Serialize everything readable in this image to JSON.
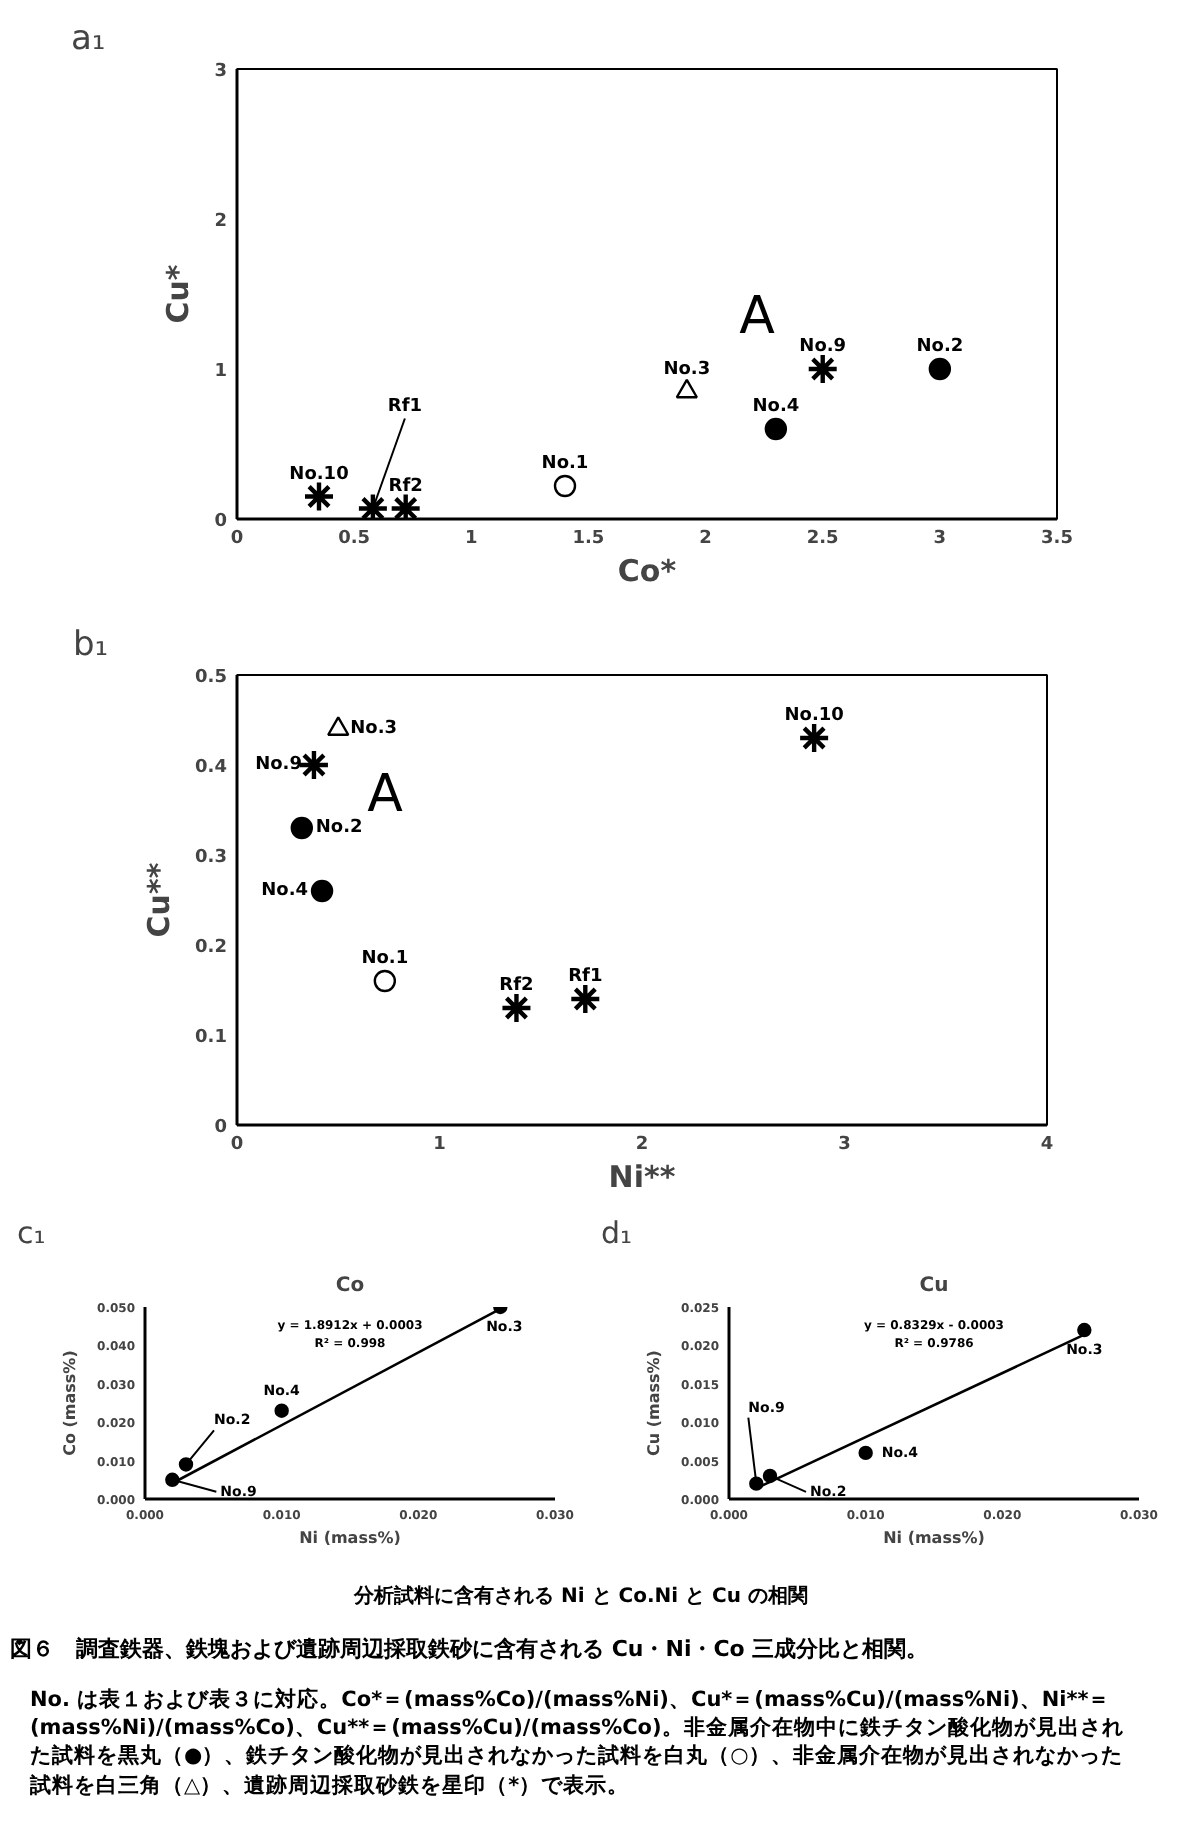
{
  "chart_data": [
    {
      "type": "scatter",
      "xlabel": "Co*",
      "ylabel": "Cu*",
      "xlim": [
        0,
        3.5
      ],
      "ylim": [
        0,
        3
      ],
      "xticks": [
        0,
        0.5,
        1,
        1.5,
        2,
        2.5,
        3,
        3.5
      ],
      "yticks": [
        0,
        1,
        2,
        3
      ],
      "series": [
        {
          "type": "scatter",
          "marker": "circle",
          "color": "#000000",
          "x": [
            2.3,
            3.0
          ],
          "values": [
            0.6,
            1.0
          ]
        },
        {
          "type": "scatter",
          "marker": "circle",
          "color": "#ffffff",
          "x": [
            1.4
          ],
          "values": [
            0.22
          ]
        },
        {
          "type": "scatter",
          "marker": "triangle",
          "color": "#ffffff",
          "x": [
            1.92
          ],
          "values": [
            0.85
          ]
        },
        {
          "type": "scatter",
          "marker": "cross",
          "color": "#000000",
          "x": [
            0.35,
            0.58,
            0.72,
            2.5
          ],
          "values": [
            0.15,
            0.07,
            0.07,
            1.0
          ]
        }
      ],
      "annotations": [
        "a₁",
        "A",
        {
          "text": "No.10",
          "x": 0.35,
          "y": 0.15
        },
        {
          "text": "Rf1",
          "x": 0.58,
          "y": 0.07
        },
        {
          "text": "Rf2",
          "x": 0.72,
          "y": 0.07
        },
        {
          "text": "No.1",
          "x": 1.4,
          "y": 0.22
        },
        {
          "text": "No.3",
          "x": 1.92,
          "y": 0.85
        },
        {
          "text": "No.4",
          "x": 2.3,
          "y": 0.6
        },
        {
          "text": "No.9",
          "x": 2.5,
          "y": 1.0
        },
        {
          "text": "No.2",
          "x": 3.0,
          "y": 1.0
        }
      ]
    },
    {
      "type": "scatter",
      "xlabel": "Ni**",
      "ylabel": "Cu**",
      "xlim": [
        0,
        4
      ],
      "ylim": [
        0,
        0.5
      ],
      "xticks": [
        0,
        1,
        2,
        3,
        4
      ],
      "yticks": [
        0,
        0.1,
        0.2,
        0.3,
        0.4,
        0.5
      ],
      "series": [
        {
          "type": "scatter",
          "marker": "circle",
          "color": "#000000",
          "x": [
            0.32,
            0.42
          ],
          "values": [
            0.33,
            0.26
          ]
        },
        {
          "type": "scatter",
          "marker": "circle",
          "color": "#ffffff",
          "x": [
            0.73
          ],
          "values": [
            0.16
          ]
        },
        {
          "type": "scatter",
          "marker": "triangle",
          "color": "#ffffff",
          "x": [
            0.5
          ],
          "values": [
            0.44
          ]
        },
        {
          "type": "scatter",
          "marker": "cross",
          "color": "#000000",
          "x": [
            0.38,
            1.38,
            1.72,
            2.85
          ],
          "values": [
            0.4,
            0.13,
            0.14,
            0.43
          ]
        }
      ],
      "annotations": [
        "b₁",
        "A",
        {
          "text": "No.3",
          "x": 0.5,
          "y": 0.44
        },
        {
          "text": "No.9",
          "x": 0.38,
          "y": 0.4
        },
        {
          "text": "No.2",
          "x": 0.32,
          "y": 0.33
        },
        {
          "text": "No.4",
          "x": 0.42,
          "y": 0.26
        },
        {
          "text": "No.1",
          "x": 0.73,
          "y": 0.16
        },
        {
          "text": "Rf2",
          "x": 1.38,
          "y": 0.13
        },
        {
          "text": "Rf1",
          "x": 1.72,
          "y": 0.14
        },
        {
          "text": "No.10",
          "x": 2.85,
          "y": 0.43
        }
      ]
    },
    {
      "type": "scatter",
      "title": "Co",
      "xlabel": "Ni (mass%)",
      "ylabel": "Co (mass%)",
      "xlim": [
        0,
        0.03
      ],
      "ylim": [
        0,
        0.05
      ],
      "xticks": [
        {
          "value": 0,
          "label": "0.000"
        },
        {
          "value": 0.01,
          "label": "0.010"
        },
        {
          "value": 0.02,
          "label": "0.020"
        },
        {
          "value": 0.03,
          "label": "0.030"
        }
      ],
      "yticks": [
        {
          "value": 0,
          "label": "0.000"
        },
        {
          "value": 0.01,
          "label": "0.010"
        },
        {
          "value": 0.02,
          "label": "0.020"
        },
        {
          "value": 0.03,
          "label": "0.030"
        },
        {
          "value": 0.04,
          "label": "0.040"
        },
        {
          "value": 0.05,
          "label": "0.050"
        }
      ],
      "series": [
        {
          "type": "line",
          "marker": "none",
          "color": "#000000",
          "x": [
            0.002,
            0.026
          ],
          "values": [
            0.0041,
            0.0495
          ]
        },
        {
          "type": "scatter",
          "marker": "circle",
          "color": "#000000",
          "x": [
            0.002,
            0.003,
            0.01,
            0.026
          ],
          "values": [
            0.005,
            0.009,
            0.023,
            0.05
          ]
        }
      ],
      "annotations": [
        "c₁",
        "y = 1.8912x + 0.0003",
        "R² = 0.998",
        {
          "text": "No.9",
          "x": 0.002,
          "y": 0.005
        },
        {
          "text": "No.2",
          "x": 0.003,
          "y": 0.009
        },
        {
          "text": "No.4",
          "x": 0.01,
          "y": 0.023
        },
        {
          "text": "No.3",
          "x": 0.026,
          "y": 0.05
        }
      ]
    },
    {
      "type": "scatter",
      "title": "Cu",
      "xlabel": "Ni (mass%)",
      "ylabel": "Cu (mass%)",
      "xlim": [
        0,
        0.03
      ],
      "ylim": [
        0,
        0.025
      ],
      "xticks": [
        {
          "value": 0,
          "label": "0.000"
        },
        {
          "value": 0.01,
          "label": "0.010"
        },
        {
          "value": 0.02,
          "label": "0.020"
        },
        {
          "value": 0.03,
          "label": "0.030"
        }
      ],
      "yticks": [
        {
          "value": 0,
          "label": "0.000"
        },
        {
          "value": 0.005,
          "label": "0.005"
        },
        {
          "value": 0.01,
          "label": "0.010"
        },
        {
          "value": 0.015,
          "label": "0.015"
        },
        {
          "value": 0.02,
          "label": "0.020"
        },
        {
          "value": 0.025,
          "label": "0.025"
        }
      ],
      "series": [
        {
          "type": "line",
          "marker": "none",
          "color": "#000000",
          "x": [
            0.002,
            0.026
          ],
          "values": [
            0.0014,
            0.0214
          ]
        },
        {
          "type": "scatter",
          "marker": "circle",
          "color": "#000000",
          "x": [
            0.002,
            0.003,
            0.01,
            0.026
          ],
          "values": [
            0.002,
            0.003,
            0.006,
            0.022
          ]
        }
      ],
      "annotations": [
        "d₁",
        "y = 0.8329x - 0.0003",
        "R² = 0.9786",
        {
          "text": "No.9",
          "x": 0.002,
          "y": 0.002
        },
        {
          "text": "No.2",
          "x": 0.003,
          "y": 0.003
        },
        {
          "text": "No.4",
          "x": 0.01,
          "y": 0.006
        },
        {
          "text": "No.3",
          "x": 0.026,
          "y": 0.022
        }
      ]
    },
    {
      "type": "other",
      "subtitle": "分析試料に含有される Ni と Co.Ni と Cu の相関",
      "title": "図６　調査鉄器、鉄塊および遺跡周辺採取鉄砂に含有される Cu・Ni・Co 三成分比と相関。",
      "annotations": [
        "No. は表１および表３に対応。Co*＝(mass%Co)/(mass%Ni)、Cu*＝(mass%Cu)/(mass%Ni)、Ni**＝(mass%Ni)/(mass%Co)、Cu**＝(mass%Cu)/(mass%Co)。非金属介在物中に鉄チタン酸化物が見出された試料を黒丸（●）、鉄チタン酸化物が見出されなかった試料を白丸（○）、非金属介在物が見出されなかった試料を白三角（△）、遺跡周辺採取砂鉄を星印（*）で表示。"
      ]
    }
  ]
}
